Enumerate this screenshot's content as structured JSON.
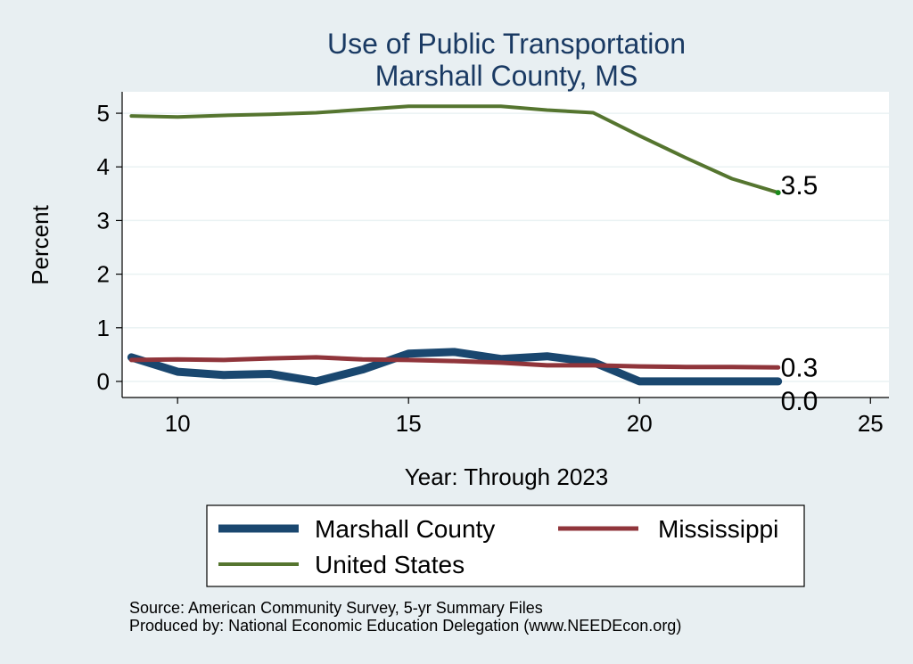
{
  "chart_data": {
    "type": "line",
    "title": "Use of Public Transportation",
    "subtitle": "Marshall County, MS",
    "xlabel": "Year: Through 2023",
    "ylabel": "Percent",
    "xlim": [
      8.8,
      25.4
    ],
    "ylim": [
      -0.3,
      5.4
    ],
    "xticks": [
      10,
      15,
      20,
      25
    ],
    "yticks": [
      0,
      1,
      2,
      3,
      4,
      5
    ],
    "grid": true,
    "legend_position": "bottom",
    "series": [
      {
        "name": "Marshall County",
        "color": "#1a476f",
        "x": [
          9,
          10,
          11,
          12,
          13,
          14,
          15,
          16,
          17,
          18,
          19,
          20,
          21,
          22,
          23
        ],
        "y": [
          0.45,
          0.18,
          0.12,
          0.14,
          0.0,
          0.22,
          0.52,
          0.55,
          0.42,
          0.47,
          0.36,
          0.0,
          0.0,
          0.0,
          0.0
        ],
        "end_label": "0.0"
      },
      {
        "name": "Mississippi",
        "color": "#90353b",
        "x": [
          9,
          10,
          11,
          12,
          13,
          14,
          15,
          16,
          17,
          18,
          19,
          20,
          21,
          22,
          23
        ],
        "y": [
          0.4,
          0.41,
          0.4,
          0.43,
          0.45,
          0.41,
          0.4,
          0.38,
          0.35,
          0.3,
          0.3,
          0.28,
          0.27,
          0.27,
          0.26
        ],
        "end_label": "0.3"
      },
      {
        "name": "United States",
        "color": "#55752f",
        "x": [
          9,
          10,
          11,
          12,
          13,
          14,
          15,
          16,
          17,
          18,
          19,
          20,
          21,
          22,
          23
        ],
        "y": [
          4.95,
          4.93,
          4.96,
          4.98,
          5.01,
          5.07,
          5.13,
          5.13,
          5.13,
          5.06,
          5.01,
          4.58,
          4.17,
          3.78,
          3.52
        ],
        "end_label": "3.5"
      }
    ],
    "source": "Source: American Community Survey, 5-yr Summary Files",
    "producer": "Produced by: National Economic Education Delegation (www.NEEDEcon.org)"
  }
}
